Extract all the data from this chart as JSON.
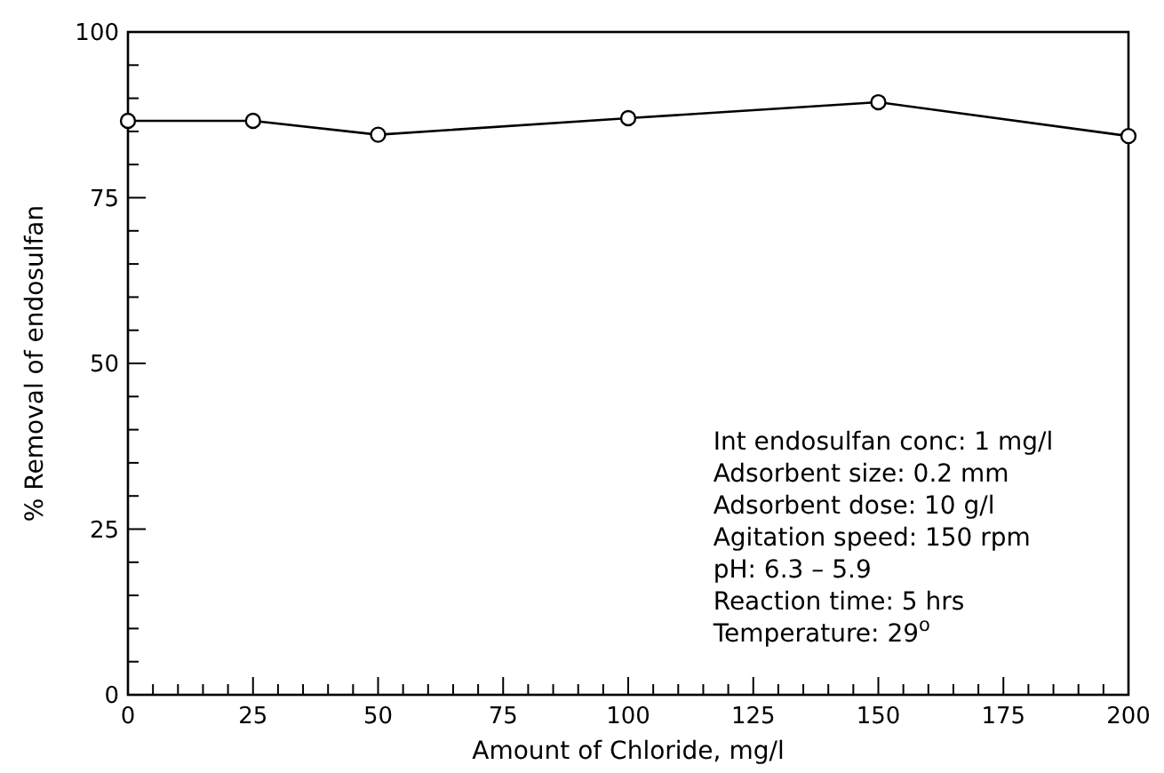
{
  "chart_data": {
    "type": "line",
    "xlabel": "Amount of Chloride, mg/l",
    "ylabel": "% Removal of endosulfan",
    "x": [
      0,
      25,
      50,
      100,
      150,
      200
    ],
    "series": [
      {
        "color": "#000000",
        "values": [
          86.6,
          86.6,
          84.5,
          87.0,
          89.4,
          84.3
        ]
      }
    ],
    "xlim": [
      0,
      200
    ],
    "ylim": [
      0,
      100
    ],
    "xticks": [
      0,
      {
        "value": 5,
        "label": null
      },
      {
        "value": 10,
        "label": null
      },
      {
        "value": 15,
        "label": null
      },
      {
        "value": 20,
        "label": null
      },
      25,
      {
        "value": 30,
        "label": null
      },
      {
        "value": 35,
        "label": null
      },
      {
        "value": 40,
        "label": null
      },
      {
        "value": 45,
        "label": null
      },
      50,
      {
        "value": 55,
        "label": null
      },
      {
        "value": 60,
        "label": null
      },
      {
        "value": 65,
        "label": null
      },
      {
        "value": 70,
        "label": null
      },
      75,
      {
        "value": 80,
        "label": null
      },
      {
        "value": 85,
        "label": null
      },
      {
        "value": 90,
        "label": null
      },
      {
        "value": 95,
        "label": null
      },
      100,
      {
        "value": 105,
        "label": null
      },
      {
        "value": 110,
        "label": null
      },
      {
        "value": 115,
        "label": null
      },
      {
        "value": 120,
        "label": null
      },
      125,
      {
        "value": 130,
        "label": null
      },
      {
        "value": 135,
        "label": null
      },
      {
        "value": 140,
        "label": null
      },
      {
        "value": 145,
        "label": null
      },
      150,
      {
        "value": 155,
        "label": null
      },
      {
        "value": 160,
        "label": null
      },
      {
        "value": 165,
        "label": null
      },
      {
        "value": 170,
        "label": null
      },
      175,
      {
        "value": 180,
        "label": null
      },
      {
        "value": 185,
        "label": null
      },
      {
        "value": 190,
        "label": null
      },
      {
        "value": 195,
        "label": null
      },
      200
    ],
    "yticks": [
      0,
      {
        "value": 5,
        "label": null
      },
      {
        "value": 10,
        "label": null
      },
      {
        "value": 15,
        "label": null
      },
      {
        "value": 20,
        "label": null
      },
      25,
      {
        "value": 30,
        "label": null
      },
      {
        "value": 35,
        "label": null
      },
      {
        "value": 40,
        "label": null
      },
      {
        "value": 45,
        "label": null
      },
      50,
      {
        "value": 55,
        "label": null
      },
      {
        "value": 60,
        "label": null
      },
      {
        "value": 65,
        "label": null
      },
      {
        "value": 70,
        "label": null
      },
      75,
      {
        "value": 80,
        "label": null
      },
      {
        "value": 85,
        "label": null
      },
      {
        "value": 90,
        "label": null
      },
      {
        "value": 95,
        "label": null
      },
      100
    ],
    "marker": "circle",
    "line_style": "solid",
    "grid": false,
    "annotations": [
      "Int endosulfan conc: 1 mg/l",
      "Adsorbent size: 0.2 mm",
      "Adsorbent dose: 10 g/l",
      "Agitation speed: 150 rpm",
      "pH: 6.3 – 5.9",
      "Reaction time: 5 hrs",
      "Temperature: 29$^{o}$"
    ]
  }
}
